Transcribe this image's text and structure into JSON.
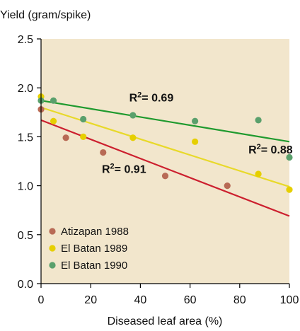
{
  "chart_data": {
    "type": "scatter",
    "ylabel": "Yield (gram/spike)",
    "xlabel": "Diseased leaf area (%)",
    "xlim": [
      0,
      100
    ],
    "ylim": [
      0,
      2.5
    ],
    "x_ticks": [
      0,
      20,
      40,
      60,
      80,
      100
    ],
    "y_ticks": [
      0.0,
      0.5,
      1.0,
      1.5,
      2.0,
      2.5
    ],
    "x_tick_labels": [
      "0",
      "20",
      "40",
      "60",
      "80",
      "100"
    ],
    "y_tick_labels": [
      "0.0",
      "0.5",
      "1.0",
      "1.5",
      "2.0",
      "2.5"
    ],
    "plot_background": "#f2e6cc",
    "legend_position": "bottom-left",
    "series": [
      {
        "name": "Atizapan 1988",
        "color": "#b86a55",
        "line_color": "#cc1f2e",
        "points": [
          [
            0,
            1.78
          ],
          [
            10,
            1.49
          ],
          [
            25,
            1.34
          ],
          [
            50,
            1.1
          ],
          [
            75,
            1.0
          ]
        ],
        "fit": [
          [
            0,
            1.67
          ],
          [
            100,
            0.69
          ]
        ],
        "r2_label": "0.91",
        "r2_anchor": [
          24.5,
          1.13
        ]
      },
      {
        "name": "El Batan 1989",
        "color": "#e6cf00",
        "line_color": "#e8d92a",
        "points": [
          [
            0,
            1.91
          ],
          [
            5,
            1.66
          ],
          [
            17,
            1.5
          ],
          [
            37,
            1.49
          ],
          [
            62,
            1.45
          ],
          [
            87.5,
            1.12
          ],
          [
            100,
            0.96
          ]
        ],
        "fit": [
          [
            0,
            1.8
          ],
          [
            100,
            0.99
          ]
        ],
        "r2_label": "0.88",
        "r2_anchor": [
          83.5,
          1.33
        ]
      },
      {
        "name": "El Batan 1990",
        "color": "#5aa06c",
        "line_color": "#1f9a2e",
        "points": [
          [
            0,
            1.87
          ],
          [
            5,
            1.87
          ],
          [
            17,
            1.68
          ],
          [
            37,
            1.72
          ],
          [
            62,
            1.66
          ],
          [
            87.5,
            1.67
          ],
          [
            100,
            1.29
          ]
        ],
        "fit": [
          [
            0,
            1.87
          ],
          [
            100,
            1.45
          ]
        ],
        "r2_label": "0.69",
        "r2_anchor": [
          35.5,
          1.86
        ]
      }
    ]
  }
}
